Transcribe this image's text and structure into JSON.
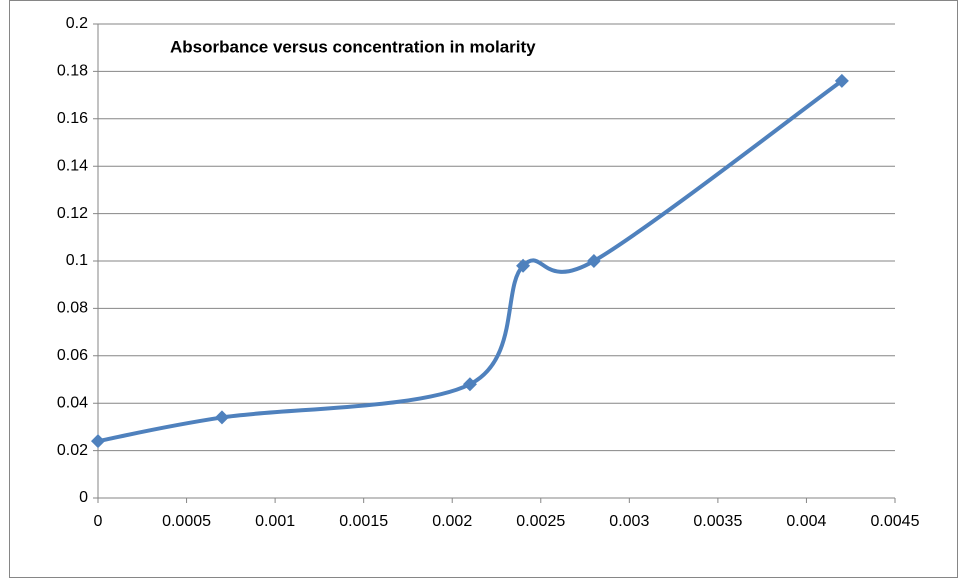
{
  "chart_data": {
    "type": "scatter",
    "title": "Absorbance versus concentration in molarity",
    "x": [
      0,
      0.0007,
      0.0021,
      0.0024,
      0.0028,
      0.0042
    ],
    "series": [
      {
        "color": "#4f81bd",
        "values": [
          0.024,
          0.034,
          0.048,
          0.098,
          0.1,
          0.176
        ]
      }
    ],
    "xlim": [
      0,
      0.0045
    ],
    "xticks": [
      0,
      0.0005,
      0.001,
      0.0015,
      0.002,
      0.0025,
      0.003,
      0.0035,
      0.004,
      0.0045
    ],
    "ylim": [
      0,
      0.2
    ],
    "yticks": [
      0,
      0.02,
      0.04,
      0.06,
      0.08,
      0.1,
      0.12,
      0.14,
      0.16,
      0.18,
      0.2
    ],
    "grid": true,
    "smooth": true
  }
}
